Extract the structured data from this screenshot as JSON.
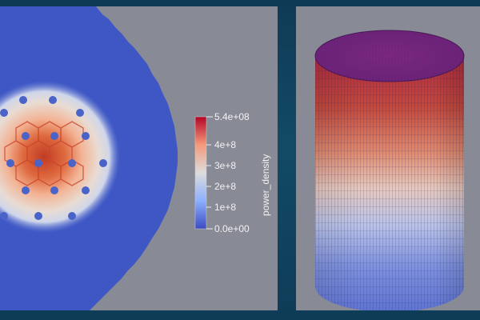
{
  "colorbar": {
    "title": "power_density",
    "max_label": "5.4e+08",
    "ticks": [
      "4e+8",
      "3e+8",
      "2e+8",
      "1e+8"
    ],
    "min_label": "0.0e+00",
    "colors": [
      "#3b4cc0",
      "#8db0fe",
      "#dddcdc",
      "#f49a7b",
      "#b40426"
    ]
  },
  "colors": {
    "background": "#0f3a55",
    "viewport": "#888a96",
    "reflector": "#3f57c4",
    "core_hot": "#b8361f"
  }
}
